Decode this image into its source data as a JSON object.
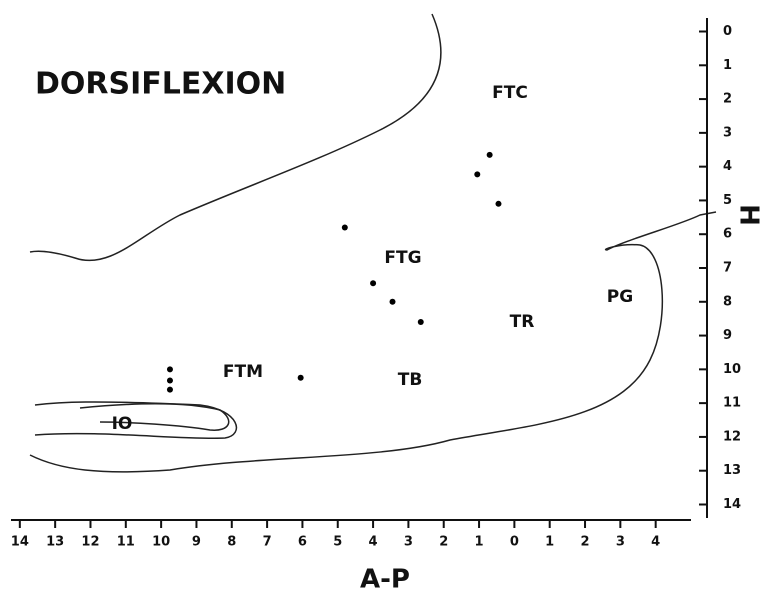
{
  "chart_data": {
    "type": "scatter",
    "title": "DORSIFLEXION",
    "x_label": "A-P",
    "y_label": "H",
    "annotations": [
      "FTC",
      "FTG",
      "FTM",
      "TR",
      "PG",
      "TB",
      "IO"
    ],
    "x": [
      4.8,
      0.7,
      1.05,
      0.45,
      4.0,
      3.45,
      2.65,
      6.05,
      9.75,
      9.75,
      9.75
    ],
    "values": [
      5.8,
      3.65,
      4.23,
      5.1,
      7.45,
      8.0,
      8.6,
      10.25,
      10.0,
      10.33,
      10.6
    ],
    "color": "#000000",
    "xlim": [
      14.25,
      -5
    ],
    "ylim": [
      -0.4,
      14.4
    ],
    "xticks": [
      14,
      13,
      12,
      11,
      10,
      9,
      8,
      7,
      6,
      5,
      4,
      3,
      2,
      1,
      0,
      {
        "value": -1,
        "label": "1"
      },
      {
        "value": -2,
        "label": "2"
      },
      {
        "value": -3,
        "label": "3"
      },
      {
        "value": -4,
        "label": "4"
      }
    ],
    "yticks": [
      0,
      1,
      2,
      3,
      4,
      5,
      6,
      7,
      8,
      9,
      10,
      11,
      12,
      13,
      14
    ]
  }
}
